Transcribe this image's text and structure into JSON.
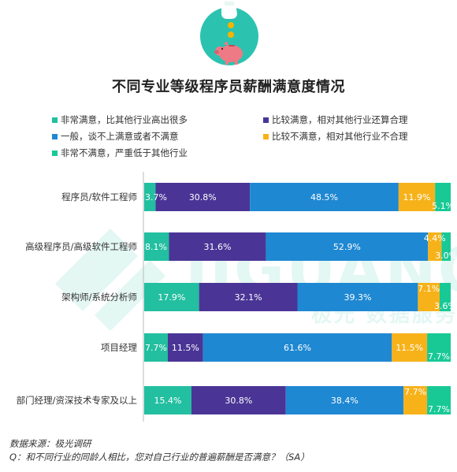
{
  "chart_data": {
    "type": "bar",
    "orientation": "horizontal-stacked-100",
    "title": "不同专业等级程序员薪酬满意度情况",
    "categories": [
      "程序员/软件工程师",
      "高级程序员/高级软件工程师",
      "架构师/系统分析师",
      "项目经理",
      "部门经理/资深技术专家及以上"
    ],
    "series": [
      {
        "name": "非常满意，比其他行业高出很多",
        "color": "#22bfa0",
        "values": [
          3.7,
          8.1,
          17.9,
          7.7,
          15.4
        ]
      },
      {
        "name": "比较满意，相对其他行业还算合理",
        "color": "#4a3596",
        "values": [
          30.8,
          31.6,
          32.1,
          11.5,
          30.8
        ]
      },
      {
        "name": "一般，谈不上满意或者不满意",
        "color": "#1f88d2",
        "values": [
          48.5,
          52.9,
          39.3,
          61.6,
          38.4
        ]
      },
      {
        "name": "比较不满意，相对其他行业不合理",
        "color": "#f7b21a",
        "values": [
          11.9,
          4.4,
          7.1,
          11.5,
          7.7
        ]
      },
      {
        "name": "非常不满意，严重低于其他行业",
        "color": "#18c996",
        "values": [
          5.1,
          3.0,
          3.6,
          7.7,
          7.7
        ]
      }
    ],
    "value_labels": [
      [
        "3.7%",
        "30.8%",
        "48.5%",
        "11.9%",
        "5.1%"
      ],
      [
        "8.1%",
        "31.6%",
        "52.9%",
        "4.4%",
        "3.0%"
      ],
      [
        "17.9%",
        "32.1%",
        "39.3%",
        "7.1%",
        "3.6%"
      ],
      [
        "7.7%",
        "11.5%",
        "61.6%",
        "11.5%",
        "7.7%"
      ],
      [
        "15.4%",
        "30.8%",
        "38.4%",
        "7.7%",
        "7.7%"
      ]
    ],
    "xlim": [
      0,
      100
    ],
    "legend_position": "top"
  },
  "watermark": {
    "latin": "JIGUANG",
    "cn": "极光 数据服务"
  },
  "footer": {
    "source": "数据来源：极光调研",
    "question": "Q：和不同行业的同龄人相比，您对自己行业的普遍薪酬是否满意？（SA）"
  },
  "colors": {
    "accent_circle": "#2bc3b0",
    "pig": "#ee7a86",
    "coin": "#f5b400"
  }
}
